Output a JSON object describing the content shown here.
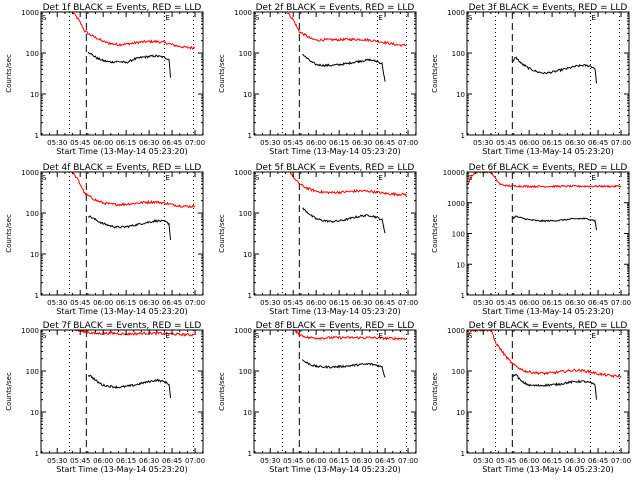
{
  "chart_data": {
    "type": "line",
    "layout": "3x3 grid",
    "common": {
      "xlabel": "Start Time (13-May-14 05:23:20)",
      "ylabel": "Counts/sec",
      "x_range_minutes": [
        "05:19",
        "07:05"
      ],
      "xticks": [
        "05:30",
        "05:45",
        "06:00",
        "06:15",
        "06:30",
        "06:45",
        "07:00"
      ],
      "yscale": "log",
      "marker_labels": {
        "start": "S",
        "end": "E"
      },
      "vertical_lines": {
        "dotted": [
          "05:38",
          "06:40",
          "06:59"
        ],
        "dashed": [
          "05:49"
        ]
      },
      "legend": {
        "black": "Events",
        "red": "LLD"
      }
    },
    "panels": [
      {
        "title": "Det 1f BLACK = Events, RED = LLD",
        "ylim": [
          1,
          1000
        ],
        "yticks": [
          "1",
          "10",
          "100",
          "1000"
        ],
        "red": {
          "x": [
            "05:40",
            "05:44",
            "05:48",
            "05:52",
            "05:56",
            "06:00",
            "06:05",
            "06:10",
            "06:15",
            "06:20",
            "06:25",
            "06:30",
            "06:35",
            "06:40",
            "06:45",
            "06:50",
            "06:55",
            "07:00"
          ],
          "y": [
            1000,
            650,
            340,
            270,
            230,
            190,
            170,
            160,
            165,
            175,
            185,
            190,
            190,
            180,
            160,
            145,
            135,
            135
          ]
        },
        "black": {
          "x": [
            "05:50",
            "05:52",
            "05:56",
            "06:00",
            "06:05",
            "06:10",
            "06:15",
            "06:20",
            "06:25",
            "06:30",
            "06:35",
            "06:40",
            "06:43",
            "06:44"
          ],
          "y": [
            110,
            95,
            75,
            65,
            60,
            62,
            58,
            70,
            78,
            82,
            85,
            78,
            70,
            25
          ]
        }
      },
      {
        "title": "Det 2f BLACK = Events, RED = LLD",
        "ylim": [
          1,
          1000
        ],
        "yticks": [
          "1",
          "10",
          "100",
          "1000"
        ],
        "red": {
          "x": [
            "05:41",
            "05:45",
            "05:49",
            "05:53",
            "05:57",
            "06:00",
            "06:05",
            "06:10",
            "06:15",
            "06:20",
            "06:25",
            "06:30",
            "06:35",
            "06:40",
            "06:45",
            "06:50",
            "06:55",
            "06:59"
          ],
          "y": [
            1000,
            650,
            330,
            270,
            220,
            205,
            210,
            210,
            210,
            215,
            215,
            215,
            205,
            195,
            180,
            165,
            155,
            155
          ]
        },
        "black": {
          "x": [
            "05:51",
            "05:53",
            "05:57",
            "06:00",
            "06:05",
            "06:10",
            "06:15",
            "06:20",
            "06:25",
            "06:30",
            "06:35",
            "06:40",
            "06:43",
            "06:45"
          ],
          "y": [
            95,
            80,
            60,
            52,
            50,
            50,
            52,
            55,
            60,
            65,
            68,
            62,
            55,
            20
          ]
        }
      },
      {
        "title": "Det 3f BLACK = Events, RED = LLD",
        "ylim": [
          1,
          1000
        ],
        "yticks": [
          "1",
          "10",
          "100",
          "1000"
        ],
        "red": null,
        "black": {
          "x": [
            "05:49",
            "05:51",
            "05:55",
            "06:00",
            "06:05",
            "06:10",
            "06:15",
            "06:20",
            "06:25",
            "06:30",
            "06:35",
            "06:40",
            "06:43",
            "06:44"
          ],
          "y": [
            55,
            80,
            55,
            42,
            35,
            32,
            34,
            38,
            42,
            47,
            50,
            48,
            42,
            18
          ]
        }
      },
      {
        "title": "Det 4f BLACK = Events, RED = LLD",
        "ylim": [
          1,
          1000
        ],
        "yticks": [
          "1",
          "10",
          "100",
          "1000"
        ],
        "red": {
          "x": [
            "05:40",
            "05:44",
            "05:48",
            "05:52",
            "05:56",
            "06:00",
            "06:05",
            "06:10",
            "06:15",
            "06:20",
            "06:25",
            "06:30",
            "06:35",
            "06:40",
            "06:45",
            "06:50",
            "06:55",
            "07:00"
          ],
          "y": [
            1000,
            600,
            300,
            240,
            200,
            175,
            165,
            160,
            165,
            170,
            180,
            185,
            185,
            175,
            160,
            150,
            145,
            145
          ]
        },
        "black": {
          "x": [
            "05:50",
            "05:52",
            "05:56",
            "06:00",
            "06:05",
            "06:10",
            "06:15",
            "06:20",
            "06:25",
            "06:30",
            "06:35",
            "06:40",
            "06:43",
            "06:44"
          ],
          "y": [
            85,
            80,
            65,
            55,
            48,
            45,
            46,
            50,
            55,
            60,
            65,
            62,
            55,
            22
          ]
        }
      },
      {
        "title": "Det 5f BLACK = Events, RED = LLD",
        "ylim": [
          1,
          1000
        ],
        "yticks": [
          "1",
          "10",
          "100",
          "1000"
        ],
        "red": {
          "x": [
            "05:43",
            "05:47",
            "05:51",
            "05:55",
            "06:00",
            "06:05",
            "06:10",
            "06:15",
            "06:20",
            "06:25",
            "06:30",
            "06:35",
            "06:40",
            "06:45",
            "06:50",
            "06:55",
            "06:59"
          ],
          "y": [
            1000,
            600,
            460,
            390,
            340,
            320,
            315,
            320,
            330,
            340,
            345,
            340,
            320,
            300,
            290,
            285,
            285
          ]
        },
        "black": {
          "x": [
            "05:51",
            "05:53",
            "05:57",
            "06:00",
            "06:05",
            "06:10",
            "06:15",
            "06:20",
            "06:25",
            "06:30",
            "06:35",
            "06:40",
            "06:43",
            "06:45"
          ],
          "y": [
            130,
            115,
            85,
            72,
            65,
            62,
            64,
            70,
            78,
            85,
            88,
            78,
            68,
            32
          ]
        }
      },
      {
        "title": "Det 6f BLACK = Events, RED = LLD",
        "ylim": [
          1,
          10000
        ],
        "yticks": [
          "1",
          "10",
          "100",
          "1000",
          "10000"
        ],
        "red": {
          "x": [
            "05:20",
            "05:22",
            "05:25",
            "05:30",
            "05:35",
            "05:38",
            "05:41",
            "05:45",
            "05:50",
            "06:00",
            "06:15",
            "06:30",
            "06:45",
            "06:55",
            "07:00"
          ],
          "y": [
            4000,
            7000,
            10000,
            10000,
            10000,
            6000,
            4000,
            3600,
            3500,
            3400,
            3400,
            3450,
            3450,
            3400,
            3500
          ]
        },
        "black": {
          "x": [
            "05:49",
            "05:51",
            "05:55",
            "06:00",
            "06:05",
            "06:10",
            "06:15",
            "06:20",
            "06:25",
            "06:30",
            "06:35",
            "06:40",
            "06:43",
            "06:44"
          ],
          "y": [
            300,
            360,
            320,
            280,
            260,
            255,
            260,
            270,
            285,
            300,
            305,
            290,
            260,
            130
          ]
        }
      },
      {
        "title": "Det 7f BLACK = Events, RED = LLD",
        "ylim": [
          1,
          1000
        ],
        "yticks": [
          "1",
          "10",
          "100",
          "1000"
        ],
        "red": {
          "x": [
            "05:42",
            "05:45",
            "05:50",
            "05:55",
            "06:00",
            "06:05",
            "06:10",
            "06:15",
            "06:20",
            "06:25",
            "06:30",
            "06:35",
            "06:40",
            "06:45",
            "06:50",
            "06:55",
            "06:59"
          ],
          "y": [
            1000,
            950,
            880,
            820,
            830,
            840,
            820,
            800,
            810,
            830,
            840,
            830,
            820,
            800,
            780,
            770,
            760
          ]
        },
        "black": {
          "x": [
            "05:50",
            "05:52",
            "05:56",
            "06:00",
            "06:05",
            "06:10",
            "06:15",
            "06:20",
            "06:25",
            "06:30",
            "06:35",
            "06:40",
            "06:43",
            "06:44"
          ],
          "y": [
            80,
            75,
            55,
            45,
            42,
            40,
            42,
            45,
            50,
            55,
            60,
            55,
            48,
            22
          ]
        }
      },
      {
        "title": "Det 8f BLACK = Events, RED = LLD",
        "ylim": [
          1,
          1000
        ],
        "yticks": [
          "1",
          "10",
          "100",
          "1000"
        ],
        "red": {
          "x": [
            "05:45",
            "05:48",
            "05:51",
            "05:55",
            "06:00",
            "06:05",
            "06:10",
            "06:15",
            "06:20",
            "06:25",
            "06:30",
            "06:35",
            "06:40",
            "06:45",
            "06:50",
            "06:55",
            "06:59"
          ],
          "y": [
            1000,
            850,
            720,
            650,
            640,
            640,
            650,
            650,
            650,
            650,
            650,
            650,
            640,
            630,
            620,
            620,
            620
          ]
        },
        "black": {
          "x": [
            "05:51",
            "05:53",
            "05:57",
            "06:00",
            "06:05",
            "06:10",
            "06:15",
            "06:20",
            "06:25",
            "06:30",
            "06:35",
            "06:40",
            "06:43",
            "06:45"
          ],
          "y": [
            185,
            165,
            140,
            130,
            125,
            125,
            128,
            132,
            138,
            145,
            148,
            138,
            125,
            70
          ]
        }
      },
      {
        "title": "Det 9f BLACK = Events, RED = LLD",
        "ylim": [
          1,
          1000
        ],
        "yticks": [
          "1",
          "10",
          "100",
          "1000"
        ],
        "red": {
          "x": [
            "05:20",
            "05:22",
            "05:35",
            "05:38",
            "05:41",
            "05:45",
            "05:49",
            "05:53",
            "05:57",
            "06:00",
            "06:05",
            "06:10",
            "06:15",
            "06:20",
            "06:25",
            "06:30",
            "06:35",
            "06:40",
            "06:45",
            "06:50",
            "06:55",
            "07:00"
          ],
          "y": [
            700,
            1000,
            1000,
            500,
            350,
            220,
            150,
            120,
            100,
            95,
            90,
            88,
            90,
            95,
            100,
            105,
            102,
            95,
            85,
            80,
            75,
            75
          ]
        },
        "black": {
          "x": [
            "05:49",
            "05:51",
            "05:55",
            "06:00",
            "06:05",
            "06:10",
            "06:15",
            "06:20",
            "06:25",
            "06:30",
            "06:35",
            "06:40",
            "06:43",
            "06:44"
          ],
          "y": [
            70,
            85,
            55,
            45,
            44,
            45,
            46,
            48,
            52,
            55,
            56,
            52,
            45,
            20
          ]
        }
      }
    ]
  }
}
